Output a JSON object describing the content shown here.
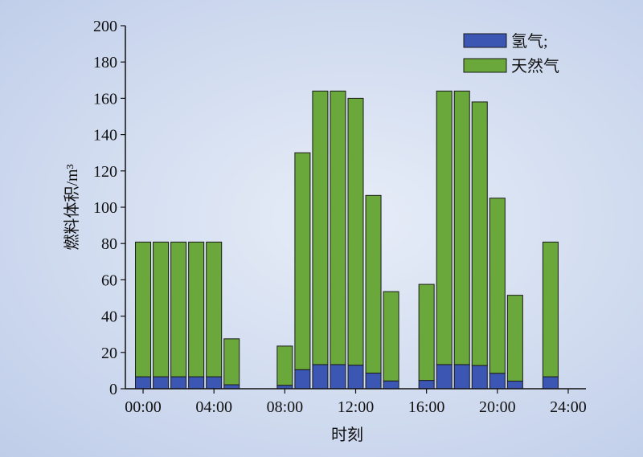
{
  "chart_data": {
    "type": "bar",
    "stacked": true,
    "x": [
      0,
      1,
      2,
      3,
      4,
      5,
      6,
      7,
      8,
      9,
      10,
      11,
      12,
      13,
      14,
      15,
      16,
      17,
      18,
      19,
      20,
      21,
      22,
      23
    ],
    "xlim": [
      -1,
      25
    ],
    "xticks": [
      0,
      4,
      8,
      12,
      16,
      20,
      24
    ],
    "xtick_labels": [
      "00:00",
      "04:00",
      "08:00",
      "12:00",
      "16:00",
      "20:00",
      "24:00"
    ],
    "ylim": [
      0,
      200
    ],
    "yticks": [
      0,
      20,
      40,
      60,
      80,
      100,
      120,
      140,
      160,
      180,
      200
    ],
    "xlabel": "时刻",
    "ylabel": "燃料体积/m³",
    "legend": "top-right",
    "grid": false,
    "series": [
      {
        "name": "氢气;",
        "color": "#3b56b3",
        "values": [
          6.6,
          6.6,
          6.6,
          6.6,
          6.6,
          2.2,
          0,
          0,
          1.9,
          10.5,
          13.3,
          13.3,
          13.0,
          8.6,
          4.3,
          0,
          4.6,
          13.3,
          13.3,
          12.8,
          8.5,
          4.2,
          0,
          6.6
        ]
      },
      {
        "name": "天然气",
        "color": "#6aa83b",
        "values": [
          74.2,
          74.2,
          74.2,
          74.2,
          74.2,
          25.3,
          0,
          0,
          21.6,
          119.5,
          150.7,
          150.7,
          147.0,
          97.9,
          49.2,
          0,
          52.9,
          150.7,
          150.7,
          145.2,
          96.5,
          47.3,
          0,
          74.2
        ]
      }
    ]
  }
}
